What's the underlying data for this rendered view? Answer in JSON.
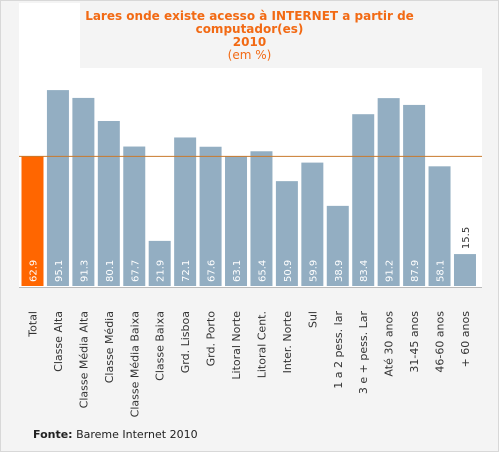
{
  "chart_data": {
    "type": "bar",
    "title_lines": [
      "Lares onde existe acesso à INTERNET a partir de",
      "computador(es)",
      "2010",
      "(em %)"
    ],
    "categories": [
      "Total",
      "Classe Alta",
      "Classe Média Alta",
      "Classe Média",
      "Classe Média Baixa",
      "Classe Baixa",
      "Grd. Lisboa",
      "Grd. Porto",
      "Litoral Norte",
      "Litoral Cent.",
      "Inter. Norte",
      "Sul",
      "1 a 2 pess. lar",
      "3 e + pess. Lar",
      "Até 30 anos",
      "31-45 anos",
      "46-60 anos",
      "+ 60 anos"
    ],
    "values": [
      62.9,
      95.1,
      91.3,
      80.1,
      67.7,
      21.9,
      72.1,
      67.6,
      63.1,
      65.4,
      50.9,
      59.9,
      38.9,
      83.4,
      91.2,
      87.9,
      58.1,
      15.5
    ],
    "value_labels": [
      "62.9",
      "95.1",
      "91.3",
      "80.1",
      "67.7",
      "21.9",
      "72.1",
      "67.6",
      "63.1",
      "65.4",
      "50.9",
      "59.9",
      "38.9",
      "83.4",
      "91.2",
      "87.9",
      "58.1",
      "15.5"
    ],
    "reference_line": 62.9,
    "ylim": [
      0,
      100
    ],
    "colors": {
      "highlight_bar": "#ff6600",
      "bar": "#93aec2",
      "reference_line": "#c8792c",
      "title": "#f26a14"
    }
  },
  "source": {
    "label": "Fonte:",
    "text": "Bareme Internet 2010"
  }
}
